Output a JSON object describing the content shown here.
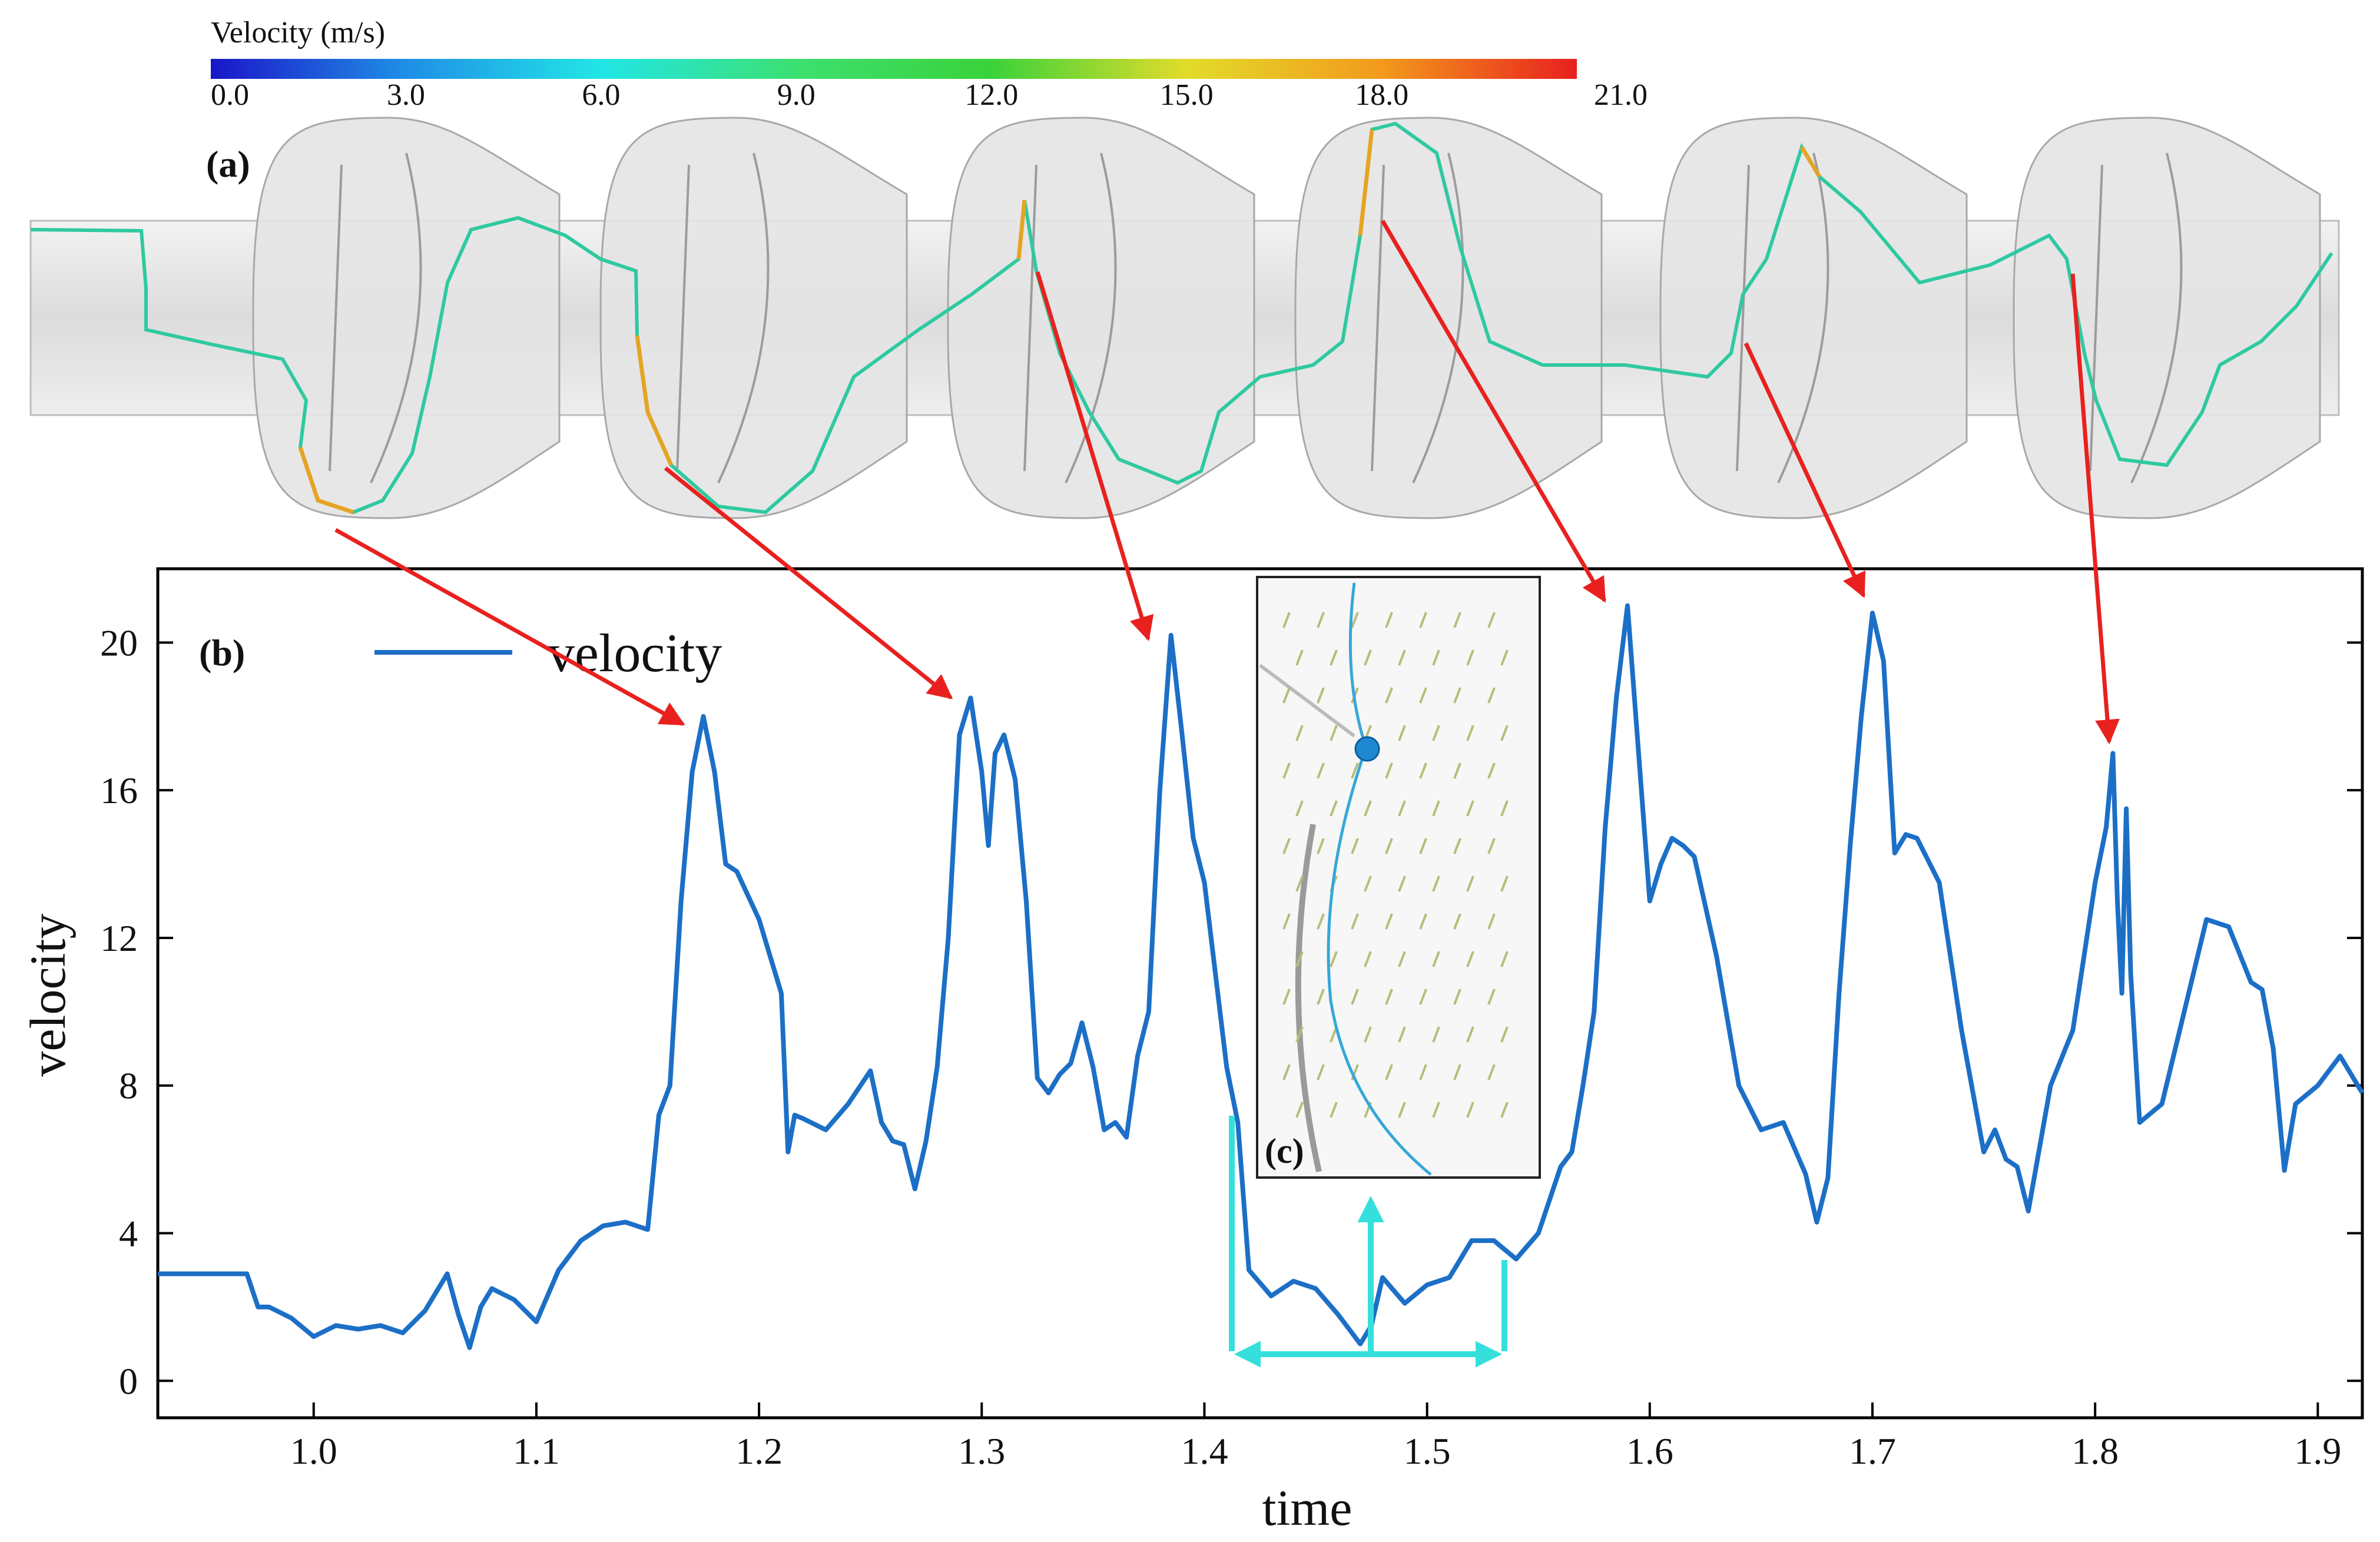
{
  "colorbar": {
    "title": "Velocity (m/s)",
    "ticks": [
      "0.0",
      "3.0",
      "6.0",
      "9.0",
      "12.0",
      "15.0",
      "18.0",
      "21.0"
    ],
    "range": [
      0,
      21
    ],
    "stops": [
      "#1a16c8",
      "#1f8fe6",
      "#22e6e6",
      "#3ce070",
      "#3ad23a",
      "#e2dc2a",
      "#f39a1c",
      "#e8201e"
    ]
  },
  "panel_labels": {
    "a": "(a)",
    "b": "(b)",
    "c": "(c)"
  },
  "chart_data": {
    "type": "line",
    "xlabel": "time",
    "ylabel": "velocity",
    "xlim": [
      0.93,
      1.92
    ],
    "ylim": [
      -1,
      22
    ],
    "xticks": [
      1.0,
      1.1,
      1.2,
      1.3,
      1.4,
      1.5,
      1.6,
      1.7,
      1.8,
      1.9
    ],
    "xtick_labels": [
      "1.0",
      "1.1",
      "1.2",
      "1.3",
      "1.4",
      "1.5",
      "1.6",
      "1.7",
      "1.8",
      "1.9"
    ],
    "yticks": [
      0,
      4,
      8,
      12,
      16,
      20
    ],
    "ytick_labels": [
      "0",
      "4",
      "8",
      "12",
      "16",
      "20"
    ],
    "legend": {
      "label": "velocity",
      "position": "top-left"
    },
    "series": [
      {
        "name": "velocity",
        "color": "#1c6fc6",
        "x": [
          0.93,
          0.97,
          0.975,
          0.98,
          0.99,
          1.0,
          1.01,
          1.02,
          1.03,
          1.04,
          1.05,
          1.055,
          1.06,
          1.065,
          1.07,
          1.075,
          1.08,
          1.09,
          1.1,
          1.11,
          1.12,
          1.13,
          1.14,
          1.15,
          1.155,
          1.16,
          1.165,
          1.17,
          1.175,
          1.18,
          1.185,
          1.19,
          1.2,
          1.21,
          1.213,
          1.216,
          1.22,
          1.23,
          1.24,
          1.25,
          1.255,
          1.26,
          1.265,
          1.27,
          1.275,
          1.28,
          1.285,
          1.29,
          1.295,
          1.3,
          1.303,
          1.306,
          1.31,
          1.315,
          1.32,
          1.325,
          1.33,
          1.335,
          1.34,
          1.345,
          1.35,
          1.355,
          1.36,
          1.365,
          1.37,
          1.375,
          1.38,
          1.385,
          1.39,
          1.395,
          1.4,
          1.405,
          1.41,
          1.415,
          1.42,
          1.43,
          1.44,
          1.45,
          1.46,
          1.47,
          1.475,
          1.48,
          1.49,
          1.5,
          1.51,
          1.52,
          1.53,
          1.54,
          1.55,
          1.56,
          1.565,
          1.57,
          1.575,
          1.58,
          1.585,
          1.59,
          1.595,
          1.6,
          1.605,
          1.61,
          1.615,
          1.62,
          1.63,
          1.64,
          1.65,
          1.66,
          1.67,
          1.675,
          1.68,
          1.685,
          1.69,
          1.695,
          1.7,
          1.705,
          1.71,
          1.715,
          1.72,
          1.73,
          1.74,
          1.75,
          1.755,
          1.76,
          1.765,
          1.77,
          1.78,
          1.79,
          1.8,
          1.805,
          1.808,
          1.81,
          1.812,
          1.814,
          1.816,
          1.82,
          1.83,
          1.84,
          1.85,
          1.86,
          1.87,
          1.875,
          1.88,
          1.885,
          1.89,
          1.9,
          1.91,
          1.92
        ],
        "y": [
          2.9,
          2.9,
          2.0,
          2.0,
          1.7,
          1.2,
          1.5,
          1.4,
          1.5,
          1.3,
          1.9,
          2.4,
          2.9,
          1.8,
          0.9,
          2.0,
          2.5,
          2.2,
          1.6,
          3.0,
          3.8,
          4.2,
          4.3,
          4.1,
          7.2,
          8.0,
          13.0,
          16.5,
          18.0,
          16.5,
          14.0,
          13.8,
          12.5,
          10.5,
          6.2,
          7.2,
          7.1,
          6.8,
          7.5,
          8.4,
          7.0,
          6.5,
          6.4,
          5.2,
          6.5,
          8.5,
          12.0,
          17.5,
          18.5,
          16.5,
          14.5,
          17.0,
          17.5,
          16.3,
          13.0,
          8.2,
          7.8,
          8.3,
          8.6,
          9.7,
          8.5,
          6.8,
          7.0,
          6.6,
          8.8,
          10.0,
          16.0,
          20.2,
          17.5,
          14.7,
          13.5,
          11.0,
          8.5,
          7.0,
          3.0,
          2.3,
          2.7,
          2.5,
          1.8,
          1.0,
          1.5,
          2.8,
          2.1,
          2.6,
          2.8,
          3.8,
          3.8,
          3.3,
          4.0,
          5.8,
          6.2,
          8.0,
          10.0,
          15.0,
          18.5,
          21.0,
          17.0,
          13.0,
          14.0,
          14.7,
          14.5,
          14.2,
          11.5,
          8.0,
          6.8,
          7.0,
          5.6,
          4.3,
          5.5,
          10.5,
          14.5,
          18.0,
          20.8,
          19.5,
          14.3,
          14.8,
          14.7,
          13.5,
          9.5,
          6.2,
          6.8,
          6.0,
          5.8,
          4.6,
          8.0,
          9.5,
          13.5,
          15.0,
          17.0,
          13.0,
          10.5,
          15.5,
          11.0,
          7.0,
          7.5,
          10.0,
          12.5,
          12.3,
          10.8,
          10.6,
          9.0,
          5.7,
          7.5,
          8.0,
          8.8,
          7.8
        ]
      }
    ]
  }
}
